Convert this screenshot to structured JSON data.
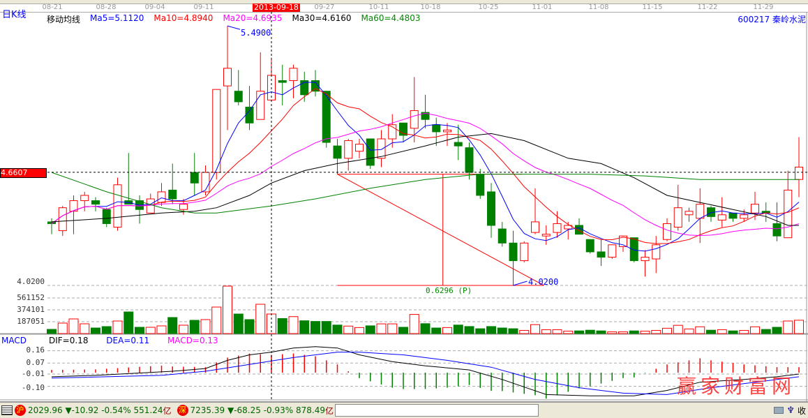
{
  "header": {
    "period": "日K线",
    "indicator_name": "移动均线",
    "ma5": "Ma5=5.1120",
    "ma10": "Ma10=4.8940",
    "ma20": "Ma20=4.6935",
    "ma30": "Ma30=4.6160",
    "ma60": "Ma60=4.4803",
    "stock": "600217 秦岭水泥",
    "cursor_date": "2013-09-18",
    "cursor_price": "4.6607"
  },
  "colors": {
    "up": "#ff0000",
    "down": "#008000",
    "ma5": "#0000ff",
    "ma10": "#ff0000",
    "ma20": "#ff00ff",
    "ma30": "#000000",
    "ma60": "#008000"
  },
  "dates": [
    "08-21",
    "08-28",
    "09-04",
    "09-11",
    "09-27",
    "10-11",
    "10-18",
    "10-25",
    "11-01",
    "11-08",
    "11-15",
    "11-22",
    "11-29"
  ],
  "annotations": {
    "high": "5.4900",
    "low": "4.0200",
    "range": "0.6296 (P)"
  },
  "macd_header": {
    "title": "MACD",
    "dif": "DIF=0.18",
    "dea": "DEA=0.11",
    "macd": "MACD=0.13"
  },
  "status": {
    "sh_badge": "沪",
    "sh_value": "2029.96",
    "sh_change": "▼-10.92",
    "sh_pct": "-0.54%",
    "sh_amount": "551.24",
    "sh_unit": "亿",
    "sz_badge": "深",
    "sz_value": "7235.39",
    "sz_change": "▼-68.25",
    "sz_pct": "-0.93%",
    "sz_amount": "878.49",
    "sz_unit": "亿",
    "close_label": "收",
    "watermark": "赢家财富网"
  },
  "chart_data": [
    {
      "type": "candlestick",
      "price_axis_label": "4.0200",
      "ohlc": [
        [
          4.38,
          4.4,
          4.31,
          4.37
        ],
        [
          4.33,
          4.47,
          4.3,
          4.46
        ],
        [
          4.44,
          4.53,
          4.31,
          4.5
        ],
        [
          4.5,
          4.55,
          4.44,
          4.53
        ],
        [
          4.5,
          4.52,
          4.44,
          4.48
        ],
        [
          4.45,
          4.46,
          4.35,
          4.37
        ],
        [
          4.35,
          4.63,
          4.33,
          4.59
        ],
        [
          4.5,
          4.77,
          4.48,
          4.48
        ],
        [
          4.5,
          4.53,
          4.37,
          4.45
        ],
        [
          4.43,
          4.54,
          4.43,
          4.51
        ],
        [
          4.49,
          4.6,
          4.47,
          4.55
        ],
        [
          4.56,
          4.71,
          4.48,
          4.51
        ],
        [
          4.45,
          4.51,
          4.42,
          4.48
        ],
        [
          4.66,
          4.77,
          4.53,
          4.6
        ],
        [
          4.55,
          4.7,
          4.53,
          4.66
        ],
        [
          4.66,
          5.13,
          4.62,
          5.13
        ],
        [
          5.15,
          5.49,
          4.9,
          5.25
        ],
        [
          5.12,
          5.24,
          5.04,
          5.06
        ],
        [
          5.03,
          5.15,
          4.9,
          4.94
        ],
        [
          4.96,
          5.34,
          4.96,
          5.12
        ],
        [
          5.07,
          5.31,
          5.06,
          5.21
        ],
        [
          5.18,
          5.27,
          5.04,
          5.17
        ],
        [
          5.18,
          5.27,
          5.08,
          5.25
        ],
        [
          5.18,
          5.23,
          5.06,
          5.1
        ],
        [
          5.18,
          5.24,
          5.09,
          5.12
        ],
        [
          5.12,
          5.12,
          4.8,
          4.83
        ],
        [
          4.81,
          4.85,
          4.65,
          4.74
        ],
        [
          4.74,
          4.85,
          4.67,
          4.84
        ],
        [
          4.78,
          4.85,
          4.74,
          4.82
        ],
        [
          4.85,
          4.85,
          4.68,
          4.7
        ],
        [
          4.74,
          4.9,
          4.69,
          4.85
        ],
        [
          4.85,
          4.99,
          4.8,
          4.93
        ],
        [
          4.94,
          4.94,
          4.83,
          4.87
        ],
        [
          4.91,
          5.2,
          4.83,
          5.01
        ],
        [
          5.0,
          5.1,
          4.91,
          4.96
        ],
        [
          4.93,
          4.97,
          4.81,
          4.89
        ],
        [
          4.89,
          4.94,
          4.81,
          4.9
        ],
        [
          4.83,
          4.93,
          4.73,
          4.81
        ],
        [
          4.8,
          4.83,
          4.62,
          4.66
        ],
        [
          4.65,
          4.68,
          4.51,
          4.53
        ],
        [
          4.55,
          4.6,
          4.29,
          4.36
        ],
        [
          4.34,
          4.38,
          4.24,
          4.26
        ],
        [
          4.26,
          4.33,
          4.02,
          4.16
        ],
        [
          4.16,
          4.27,
          4.15,
          4.26
        ],
        [
          4.32,
          4.57,
          4.31,
          4.38
        ],
        [
          4.3,
          4.36,
          4.25,
          4.31
        ],
        [
          4.32,
          4.44,
          4.29,
          4.37
        ],
        [
          4.34,
          4.38,
          4.28,
          4.36
        ],
        [
          4.36,
          4.4,
          4.31,
          4.31
        ],
        [
          4.28,
          4.28,
          4.2,
          4.21
        ],
        [
          4.21,
          4.28,
          4.13,
          4.18
        ],
        [
          4.18,
          4.25,
          4.17,
          4.25
        ],
        [
          4.24,
          4.3,
          4.21,
          4.3
        ],
        [
          4.29,
          4.29,
          4.15,
          4.16
        ],
        [
          4.16,
          4.22,
          4.07,
          4.18
        ],
        [
          4.17,
          4.3,
          4.09,
          4.25
        ],
        [
          4.28,
          4.4,
          4.27,
          4.37
        ],
        [
          4.35,
          4.59,
          4.33,
          4.46
        ],
        [
          4.42,
          4.46,
          4.38,
          4.44
        ],
        [
          4.4,
          4.57,
          4.26,
          4.48
        ],
        [
          4.46,
          4.47,
          4.38,
          4.41
        ],
        [
          4.39,
          4.52,
          4.35,
          4.42
        ],
        [
          4.43,
          4.43,
          4.38,
          4.4
        ],
        [
          4.4,
          4.45,
          4.38,
          4.42
        ],
        [
          4.43,
          4.55,
          4.39,
          4.48
        ],
        [
          4.44,
          4.49,
          4.38,
          4.43
        ],
        [
          4.37,
          4.49,
          4.27,
          4.3
        ],
        [
          4.29,
          4.67,
          4.29,
          4.56
        ],
        [
          4.62,
          4.86,
          4.52,
          4.69
        ]
      ],
      "ma30": [
        [
          0,
          4.38
        ],
        [
          5,
          4.4
        ],
        [
          10,
          4.43
        ],
        [
          13,
          4.44
        ],
        [
          15,
          4.46
        ],
        [
          18,
          4.53
        ],
        [
          20,
          4.6
        ],
        [
          23,
          4.67
        ],
        [
          26,
          4.71
        ],
        [
          30,
          4.75
        ],
        [
          34,
          4.81
        ],
        [
          37,
          4.86
        ],
        [
          40,
          4.88
        ],
        [
          43,
          4.84
        ],
        [
          47,
          4.74
        ],
        [
          50,
          4.71
        ],
        [
          53,
          4.63
        ],
        [
          56,
          4.53
        ],
        [
          59,
          4.49
        ],
        [
          62,
          4.45
        ],
        [
          65,
          4.41
        ],
        [
          67,
          4.36
        ],
        [
          68,
          4.36
        ]
      ],
      "ma60": [
        [
          0,
          4.66
        ],
        [
          5,
          4.55
        ],
        [
          10,
          4.46
        ],
        [
          13,
          4.43
        ],
        [
          15,
          4.43
        ],
        [
          20,
          4.47
        ],
        [
          24,
          4.51
        ],
        [
          29,
          4.57
        ],
        [
          34,
          4.62
        ],
        [
          39,
          4.65
        ],
        [
          44,
          4.65
        ],
        [
          49,
          4.65
        ],
        [
          54,
          4.64
        ],
        [
          59,
          4.62
        ],
        [
          64,
          4.62
        ],
        [
          68,
          4.62
        ]
      ],
      "cursor_index": 20,
      "cursor_price": 4.6607,
      "drawing": {
        "top_price": 4.65,
        "bottom_price": 4.02,
        "start_index": 26,
        "end_index": 44.8,
        "mid_index": 35.6
      }
    },
    {
      "type": "bar",
      "name": "volume",
      "tick_labels": [
        "561152",
        "374101",
        "187051"
      ],
      "ticks": [
        561152,
        374101,
        187051
      ],
      "values": [
        66000,
        165000,
        231000,
        154000,
        88000,
        110000,
        198000,
        341000,
        99000,
        99000,
        121000,
        253000,
        132000,
        209000,
        220000,
        418000,
        748000,
        308000,
        220000,
        462000,
        308000,
        237000,
        267000,
        202000,
        191000,
        191000,
        134000,
        118000,
        95000,
        122000,
        153000,
        153000,
        99000,
        302000,
        156000,
        88000,
        95000,
        134000,
        111000,
        76000,
        111000,
        88000,
        76000,
        50000,
        141000,
        61000,
        61000,
        38000,
        42000,
        53000,
        42000,
        27000,
        27000,
        42000,
        38000,
        50000,
        84000,
        130000,
        73000,
        107000,
        53000,
        61000,
        42000,
        50000,
        107000,
        65000,
        99000,
        198000,
        210000
      ]
    },
    {
      "type": "line",
      "name": "MACD",
      "tick_labels": [
        "0.16",
        "0.07",
        "-0.01",
        "-0.10"
      ],
      "ticks": [
        0.16,
        0.07,
        -0.01,
        -0.1
      ],
      "dif": [
        [
          0,
          -0.03
        ],
        [
          4,
          -0.02
        ],
        [
          11,
          0.01
        ],
        [
          14,
          0.03
        ],
        [
          16,
          0.09
        ],
        [
          18,
          0.13
        ],
        [
          20,
          0.15
        ],
        [
          22,
          0.18
        ],
        [
          24,
          0.19
        ],
        [
          26,
          0.18
        ],
        [
          28,
          0.13
        ],
        [
          31,
          0.08
        ],
        [
          34,
          0.05
        ],
        [
          38,
          0.02
        ],
        [
          41,
          -0.05
        ],
        [
          45,
          -0.16
        ],
        [
          49,
          -0.17
        ],
        [
          53,
          -0.17
        ],
        [
          56,
          -0.13
        ],
        [
          59,
          -0.07
        ],
        [
          63,
          -0.05
        ],
        [
          66,
          -0.03
        ],
        [
          68,
          -0.01
        ]
      ],
      "dea": [
        [
          0,
          -0.04
        ],
        [
          10,
          -0.02
        ],
        [
          14,
          0.01
        ],
        [
          18,
          0.06
        ],
        [
          22,
          0.11
        ],
        [
          26,
          0.15
        ],
        [
          28,
          0.15
        ],
        [
          32,
          0.13
        ],
        [
          36,
          0.09
        ],
        [
          40,
          0.04
        ],
        [
          44,
          -0.05
        ],
        [
          48,
          -0.11
        ],
        [
          52,
          -0.15
        ],
        [
          56,
          -0.16
        ],
        [
          60,
          -0.11
        ],
        [
          64,
          -0.07
        ],
        [
          68,
          -0.03
        ]
      ]
    }
  ]
}
